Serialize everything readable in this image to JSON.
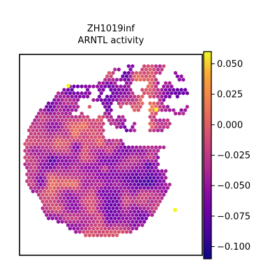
{
  "chart_data": {
    "type": "heatmap",
    "subtype": "spatial hexagonal spot map",
    "title_lines": [
      "ZH1019inf",
      "ARNTL activity"
    ],
    "xlabel": "",
    "ylabel": "",
    "colormap": "plasma",
    "colorbar": {
      "range": [
        -0.11,
        0.06
      ],
      "ticks": [
        0.05,
        0.025,
        0.0,
        -0.025,
        -0.05,
        -0.075,
        -0.1
      ],
      "tick_labels": [
        "0.050",
        "0.025",
        "0.000",
        "−0.025",
        "−0.050",
        "−0.075",
        "−0.100"
      ]
    },
    "tissue": {
      "shape": "roughly circular section with a missing upper-right wedge and holes",
      "typical_value": -0.035,
      "min_value": -0.108,
      "max_value": 0.06,
      "bright_spots": 3
    },
    "frame": {
      "grid": false,
      "axis_ticks": false
    }
  }
}
